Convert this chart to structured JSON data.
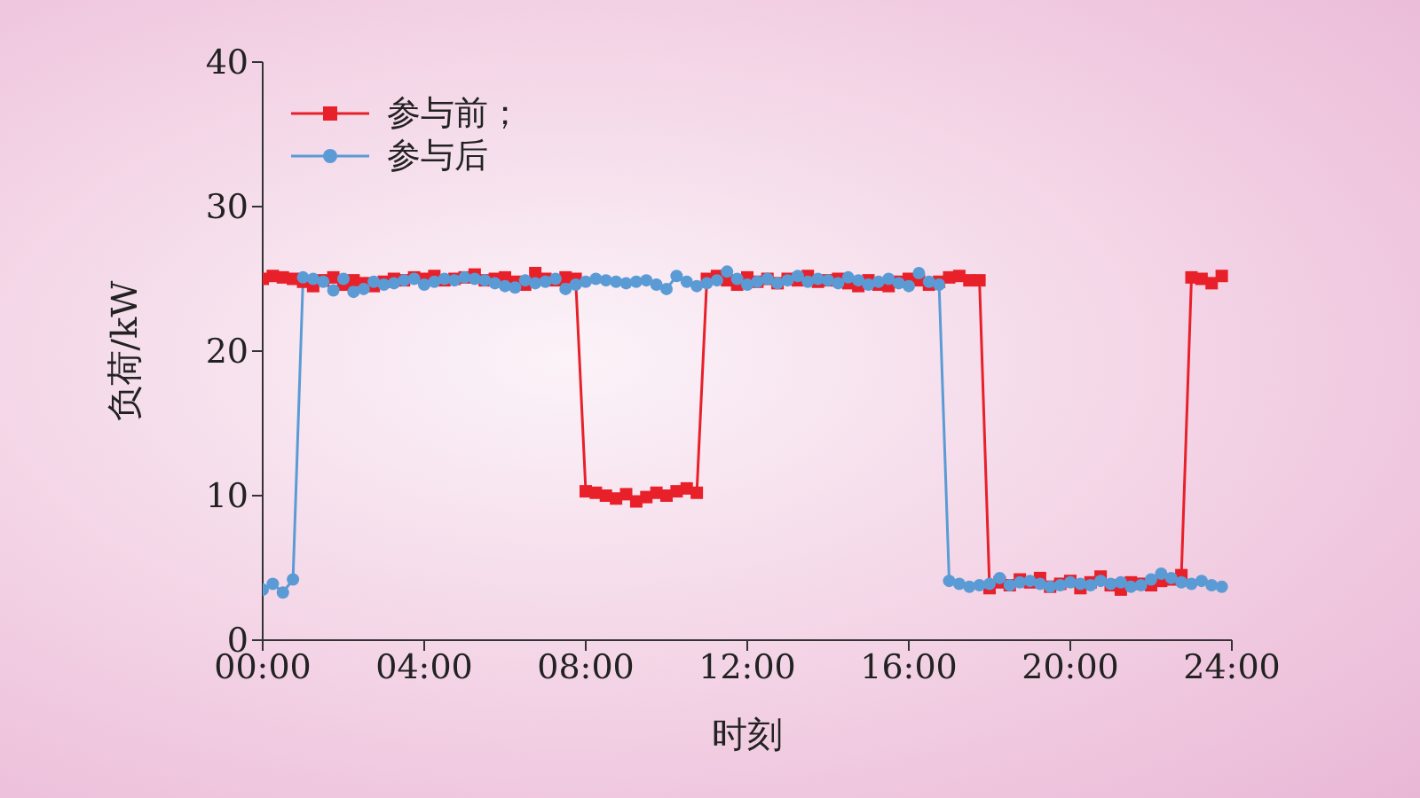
{
  "chart_data": {
    "type": "line",
    "xlabel": "时刻",
    "ylabel": "负荷/kW",
    "x": [
      0,
      0.25,
      0.5,
      0.75,
      1,
      1.25,
      1.5,
      1.75,
      2,
      2.25,
      2.5,
      2.75,
      3,
      3.25,
      3.5,
      3.75,
      4,
      4.25,
      4.5,
      4.75,
      5,
      5.25,
      5.5,
      5.75,
      6,
      6.25,
      6.5,
      6.75,
      7,
      7.25,
      7.5,
      7.75,
      8,
      8.25,
      8.5,
      8.75,
      9,
      9.25,
      9.5,
      9.75,
      10,
      10.25,
      10.5,
      10.75,
      11,
      11.25,
      11.5,
      11.75,
      12,
      12.25,
      12.5,
      12.75,
      13,
      13.25,
      13.5,
      13.75,
      14,
      14.25,
      14.5,
      14.75,
      15,
      15.25,
      15.5,
      15.75,
      16,
      16.25,
      16.5,
      16.75,
      17,
      17.25,
      17.5,
      17.75,
      18,
      18.25,
      18.5,
      18.75,
      19,
      19.25,
      19.5,
      19.75,
      20,
      20.25,
      20.5,
      20.75,
      21,
      21.25,
      21.5,
      21.75,
      22,
      22.25,
      22.5,
      22.75,
      23,
      23.25,
      23.5,
      23.75
    ],
    "series": [
      {
        "name": "参与前；",
        "color": "#e8202a",
        "marker": "square",
        "values": [
          25.0,
          25.2,
          25.1,
          25.0,
          24.8,
          24.5,
          24.9,
          25.1,
          24.6,
          24.9,
          24.7,
          24.5,
          24.8,
          25.0,
          24.9,
          25.1,
          25.0,
          25.2,
          24.9,
          25.0,
          25.1,
          25.3,
          24.9,
          25.0,
          25.1,
          24.8,
          24.6,
          25.4,
          25.0,
          24.9,
          25.1,
          25.0,
          10.3,
          10.2,
          10.0,
          9.8,
          10.1,
          9.6,
          9.9,
          10.2,
          10.0,
          10.3,
          10.5,
          10.2,
          25.0,
          25.2,
          24.9,
          24.6,
          25.1,
          24.8,
          25.0,
          24.7,
          25.0,
          24.9,
          25.2,
          24.8,
          24.9,
          25.0,
          24.7,
          24.5,
          24.9,
          24.6,
          24.5,
          24.8,
          25.0,
          24.9,
          24.6,
          24.8,
          25.1,
          25.2,
          24.9,
          24.9,
          3.6,
          4.0,
          3.8,
          4.2,
          4.0,
          4.3,
          3.7,
          3.9,
          4.1,
          3.6,
          4.0,
          4.4,
          3.8,
          3.5,
          4.0,
          3.9,
          3.8,
          4.1,
          4.2,
          4.5,
          25.1,
          25.0,
          24.7,
          25.2
        ]
      },
      {
        "name": "参与后",
        "color": "#5b9bd5",
        "marker": "circle",
        "values": [
          3.5,
          3.9,
          3.3,
          4.2,
          25.1,
          25.0,
          24.8,
          24.2,
          25.0,
          24.1,
          24.3,
          24.8,
          24.6,
          24.7,
          24.9,
          25.0,
          24.6,
          24.8,
          25.0,
          24.9,
          25.1,
          25.0,
          24.9,
          24.7,
          24.5,
          24.4,
          24.9,
          24.7,
          24.8,
          25.0,
          24.3,
          24.6,
          24.8,
          25.0,
          24.9,
          24.8,
          24.7,
          24.8,
          24.9,
          24.6,
          24.3,
          25.2,
          24.8,
          24.5,
          24.7,
          24.9,
          25.5,
          25.0,
          24.6,
          24.8,
          25.0,
          24.7,
          24.9,
          25.2,
          24.8,
          25.0,
          24.9,
          24.7,
          25.1,
          24.9,
          24.6,
          24.8,
          25.0,
          24.7,
          24.5,
          25.4,
          24.8,
          24.6,
          4.1,
          3.9,
          3.7,
          3.8,
          3.9,
          4.3,
          3.8,
          4.0,
          4.1,
          3.9,
          3.7,
          3.8,
          4.0,
          3.9,
          3.8,
          4.1,
          3.9,
          4.0,
          3.7,
          3.8,
          4.2,
          4.6,
          4.3,
          4.0,
          3.9,
          4.1,
          3.8,
          3.7
        ]
      }
    ],
    "xlim": [
      0,
      24
    ],
    "xticks": [
      {
        "value": 0,
        "label": "00:00"
      },
      {
        "value": 4,
        "label": "04:00"
      },
      {
        "value": 8,
        "label": "08:00"
      },
      {
        "value": 12,
        "label": "12:00"
      },
      {
        "value": 16,
        "label": "16:00"
      },
      {
        "value": 20,
        "label": "20:00"
      },
      {
        "value": 24,
        "label": "24:00"
      }
    ],
    "ylim": [
      0,
      40
    ],
    "yticks": [
      0,
      10,
      20,
      30,
      40
    ],
    "grid": false,
    "legend": "top left",
    "line_style": "solid"
  }
}
